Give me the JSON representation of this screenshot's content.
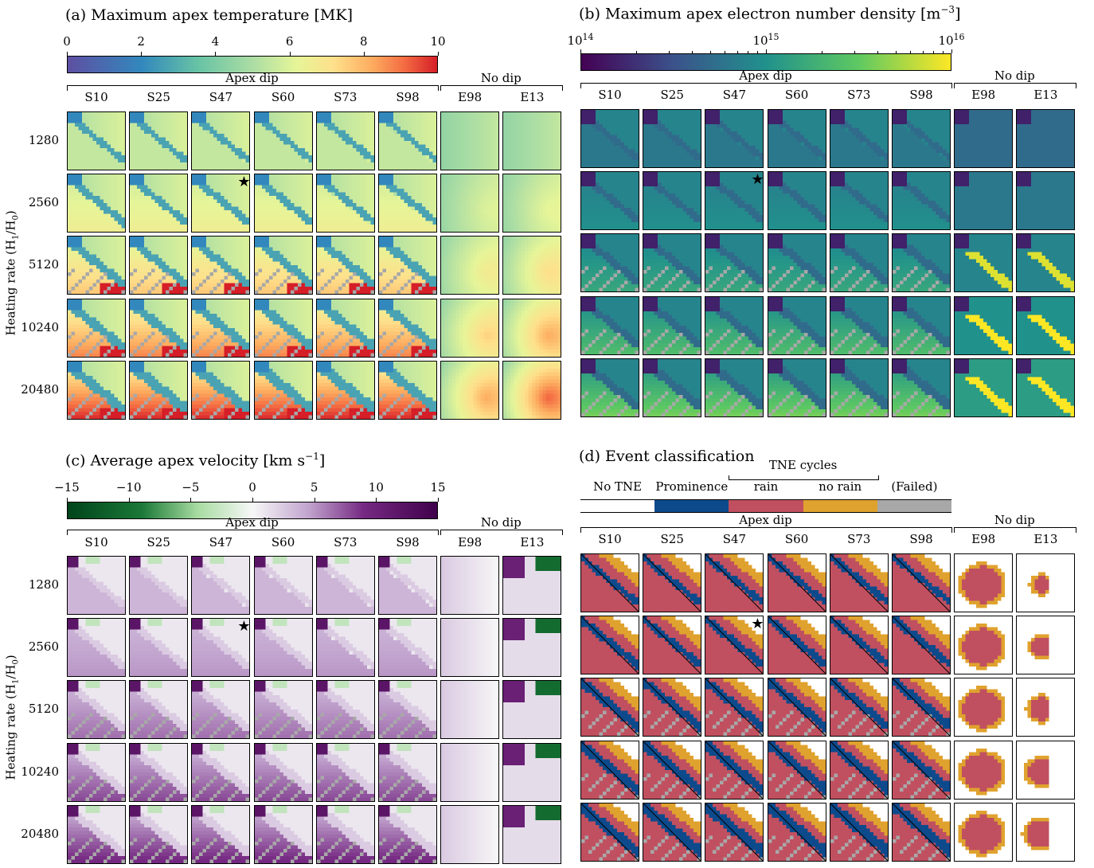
{
  "panels": {
    "a": {
      "title": "(a) Maximum apex temperature [MK]",
      "ticks": [
        "0",
        "2",
        "4",
        "6",
        "8",
        "10"
      ]
    },
    "b": {
      "title_main": "(b) Maximum apex electron number density [m",
      "title_sup": "−3",
      "title_end": "]",
      "ticks": [
        {
          "base": "10",
          "exp": "14"
        },
        {
          "base": "10",
          "exp": "15"
        },
        {
          "base": "10",
          "exp": "16"
        }
      ]
    },
    "c": {
      "title_main": "(c) Average apex velocity [km s",
      "title_sup": "−1",
      "title_end": "]",
      "ticks": [
        "−15",
        "−10",
        "−5",
        "0",
        "5",
        "10",
        "15"
      ]
    },
    "d": {
      "title": "(d) Event classification",
      "legend_group": "TNE cycles",
      "legend": [
        "No TNE",
        "Prominence",
        "rain",
        "no rain",
        "(Failed)"
      ]
    }
  },
  "groups": {
    "dip": "Apex dip",
    "nodip": "No dip"
  },
  "columns": [
    "S10",
    "S25",
    "S47",
    "S60",
    "S73",
    "S98",
    "E98",
    "E13"
  ],
  "rows": [
    "1280",
    "2560",
    "5120",
    "10240",
    "20480"
  ],
  "ylabel_main": "Heating rate (H",
  "ylabel_sub1": "1",
  "ylabel_mid": "/H",
  "ylabel_sub0": "0",
  "ylabel_end": ")",
  "marker": "★",
  "colors": {
    "no_tne": "#ffffff",
    "prominence": "#0c4a8c",
    "rain": "#c05060",
    "no_rain": "#e0a22e",
    "failed": "#a8a8a8"
  },
  "chart_data": [
    {
      "type": "heatmap",
      "title": "(a) Maximum apex temperature [MK]",
      "colorbar_range": [
        0,
        10
      ],
      "colormap": "spectral",
      "rows": [
        "1280",
        "2560",
        "5120",
        "10240",
        "20480"
      ],
      "columns": [
        "S10",
        "S25",
        "S47",
        "S60",
        "S73",
        "S98",
        "E98",
        "E13"
      ],
      "starred_cell": {
        "row": "2560",
        "column": "S47"
      }
    },
    {
      "type": "heatmap",
      "title": "(b) Maximum apex electron number density [m−3]",
      "colorbar_range": [
        100000000000000.0,
        1e+16
      ],
      "log_scale": true,
      "colormap": "viridis",
      "rows": [
        "1280",
        "2560",
        "5120",
        "10240",
        "20480"
      ],
      "columns": [
        "S10",
        "S25",
        "S47",
        "S60",
        "S73",
        "S98",
        "E98",
        "E13"
      ],
      "starred_cell": {
        "row": "2560",
        "column": "S47"
      }
    },
    {
      "type": "heatmap",
      "title": "(c) Average apex velocity [km s−1]",
      "colorbar_range": [
        -15,
        15
      ],
      "colormap": "PRGn",
      "rows": [
        "1280",
        "2560",
        "5120",
        "10240",
        "20480"
      ],
      "columns": [
        "S10",
        "S25",
        "S47",
        "S60",
        "S73",
        "S98",
        "E98",
        "E13"
      ],
      "starred_cell": {
        "row": "2560",
        "column": "S47"
      }
    },
    {
      "type": "heatmap",
      "title": "(d) Event classification",
      "categories": [
        "No TNE",
        "Prominence",
        "rain",
        "no rain",
        "(Failed)"
      ],
      "rows": [
        "1280",
        "2560",
        "5120",
        "10240",
        "20480"
      ],
      "columns": [
        "S10",
        "S25",
        "S47",
        "S60",
        "S73",
        "S98",
        "E98",
        "E13"
      ],
      "starred_cell": {
        "row": "2560",
        "column": "S47"
      }
    }
  ]
}
